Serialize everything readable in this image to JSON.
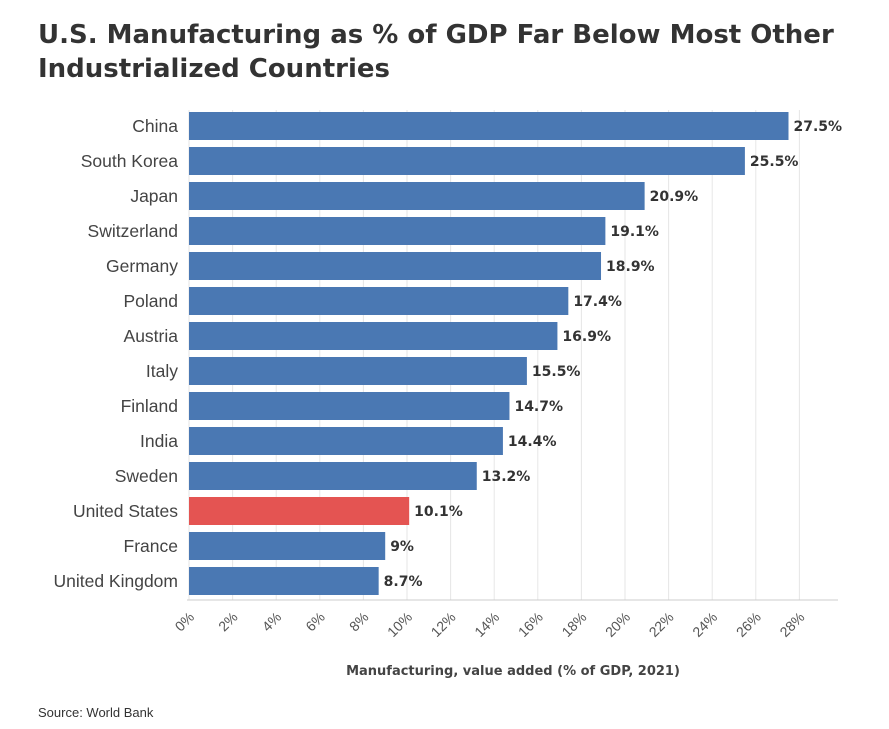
{
  "title": "U.S. Manufacturing as % of GDP Far Below Most Other Industrialized Countries",
  "source": "Source: World Bank",
  "colors": {
    "default_bar": "#4a78b3",
    "highlight_bar": "#e45452"
  },
  "chart_data": {
    "type": "bar",
    "orientation": "horizontal",
    "title": "U.S. Manufacturing as % of GDP Far Below Most Other Industrialized Countries",
    "xlabel": "Manufacturing, value added (% of GDP, 2021)",
    "ylabel": "",
    "xlim": [
      0,
      30
    ],
    "grid": true,
    "categories": [
      "China",
      "South Korea",
      "Japan",
      "Switzerland",
      "Germany",
      "Poland",
      "Austria",
      "Italy",
      "Finland",
      "India",
      "Sweden",
      "United States",
      "France",
      "United Kingdom"
    ],
    "values": [
      27.5,
      25.5,
      20.9,
      19.1,
      18.9,
      17.4,
      16.9,
      15.5,
      14.7,
      14.4,
      13.2,
      10.1,
      9,
      8.7
    ],
    "value_labels": [
      "27.5%",
      "25.5%",
      "20.9%",
      "19.1%",
      "18.9%",
      "17.4%",
      "16.9%",
      "15.5%",
      "14.7%",
      "14.4%",
      "13.2%",
      "10.1%",
      "9%",
      "8.7%"
    ],
    "highlight": "United States",
    "ticks": [
      0,
      2,
      4,
      6,
      8,
      10,
      12,
      14,
      16,
      18,
      20,
      22,
      24,
      26,
      28
    ],
    "tick_labels": [
      "0%",
      "2%",
      "4%",
      "6%",
      "8%",
      "10%",
      "12%",
      "14%",
      "16%",
      "18%",
      "20%",
      "22%",
      "24%",
      "26%",
      "28%"
    ]
  }
}
